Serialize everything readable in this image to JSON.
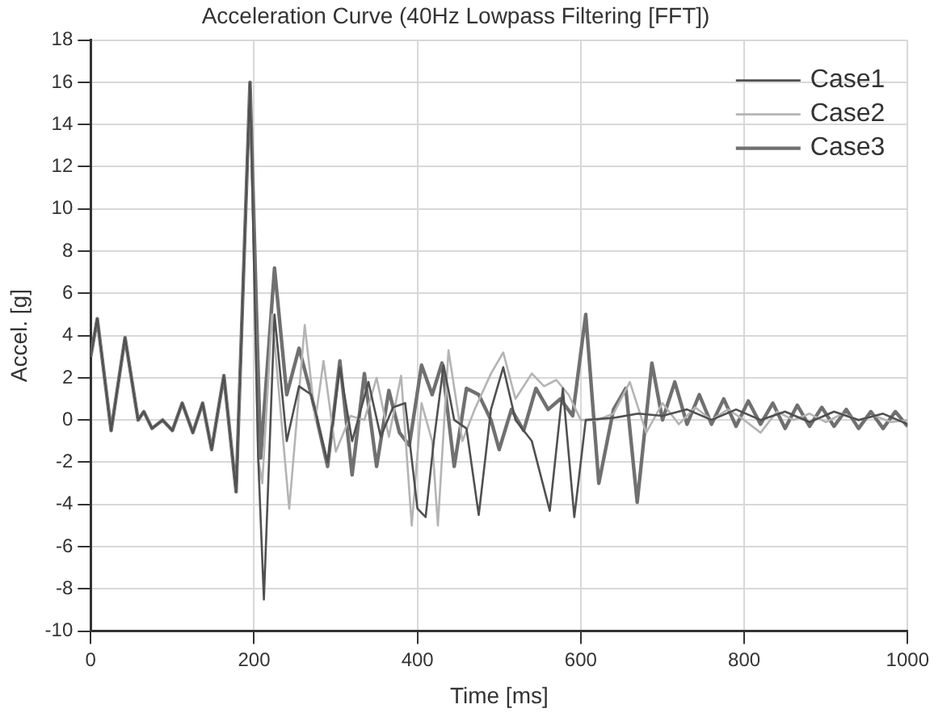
{
  "chart_data": {
    "type": "line",
    "title": "Acceleration Curve (40Hz Lowpass Filtering [FFT])",
    "xlabel": "Time [ms]",
    "ylabel": "Accel. [g]",
    "xlim": [
      0,
      1000
    ],
    "xticks": [
      0,
      200,
      400,
      600,
      800,
      1000
    ],
    "ylim": [
      -10,
      18
    ],
    "yticks": [
      -10,
      -8,
      -6,
      -4,
      -2,
      0,
      2,
      4,
      6,
      8,
      10,
      12,
      14,
      16,
      18
    ],
    "grid": true,
    "legend": "top right",
    "marker": "none",
    "line_style": "solid",
    "series": [
      {
        "name": "Case1",
        "color": "#505050",
        "x": [
          0,
          8,
          25,
          42,
          58,
          65,
          75,
          88,
          100,
          112,
          125,
          137,
          148,
          163,
          178,
          195,
          205,
          212,
          225,
          240,
          255,
          270,
          290,
          305,
          320,
          340,
          355,
          370,
          385,
          400,
          410,
          420,
          432,
          445,
          460,
          475,
          490,
          505,
          520,
          540,
          562,
          578,
          592,
          606,
          640,
          670,
          700,
          730,
          760,
          790,
          820,
          850,
          880,
          910,
          940,
          970,
          1000
        ],
        "values": [
          3,
          4.8,
          -0.5,
          3.9,
          0,
          0.4,
          -0.4,
          0,
          -0.5,
          0.8,
          -0.6,
          0.8,
          -1.4,
          2.1,
          -3.4,
          16,
          -1.8,
          -8.5,
          5,
          -1,
          1.6,
          1.2,
          -2,
          2.5,
          -1,
          1.8,
          -0.8,
          0.6,
          0.8,
          -4.2,
          -4.6,
          -1,
          2.6,
          0,
          -0.4,
          -4.5,
          0.5,
          2.5,
          0,
          -1,
          -4.3,
          1.5,
          -4.6,
          0,
          0.1,
          0.3,
          0.2,
          0.5,
          0,
          0.5,
          0,
          0.4,
          -0.1,
          0.4,
          0,
          0.3,
          -0.2
        ]
      },
      {
        "name": "Case2",
        "color": "#b4b4b4",
        "x": [
          0,
          8,
          25,
          42,
          58,
          65,
          75,
          88,
          100,
          112,
          125,
          137,
          148,
          163,
          178,
          195,
          205,
          210,
          222,
          243,
          262,
          275,
          285,
          300,
          318,
          335,
          350,
          365,
          380,
          393,
          405,
          418,
          425,
          438,
          455,
          470,
          490,
          505,
          520,
          540,
          555,
          570,
          585,
          600,
          620,
          640,
          660,
          680,
          700,
          720,
          740,
          760,
          780,
          800,
          820,
          840,
          860,
          880,
          900,
          920,
          940,
          960,
          980,
          1000
        ],
        "values": [
          3,
          4.8,
          -0.5,
          3.9,
          0,
          0.4,
          -0.4,
          0,
          -0.5,
          0.8,
          -0.6,
          0.8,
          -1.4,
          2.1,
          -3.4,
          16,
          -1.8,
          -3,
          5,
          -4.2,
          4.5,
          0,
          2.8,
          -1.5,
          0.2,
          0,
          2,
          -0.8,
          2.1,
          -5,
          0.8,
          -1,
          -5,
          3.3,
          -1,
          0.5,
          2.2,
          3.2,
          1,
          2.2,
          1.6,
          1.9,
          1.2,
          0,
          0,
          0.3,
          1.8,
          -0.6,
          0.8,
          -0.2,
          0.6,
          0,
          0.5,
          0,
          -0.6,
          0.4,
          0,
          0.3,
          -0.1,
          0.3,
          0,
          0.2,
          -0.1,
          0
        ]
      },
      {
        "name": "Case3",
        "color": "#707070",
        "x": [
          0,
          8,
          25,
          42,
          58,
          65,
          75,
          88,
          100,
          112,
          125,
          137,
          148,
          163,
          178,
          195,
          208,
          225,
          240,
          255,
          270,
          290,
          305,
          320,
          335,
          350,
          365,
          378,
          390,
          405,
          418,
          430,
          445,
          460,
          475,
          490,
          500,
          515,
          530,
          545,
          560,
          575,
          590,
          606,
          622,
          640,
          655,
          669,
          687,
          700,
          715,
          730,
          745,
          760,
          775,
          790,
          805,
          820,
          835,
          850,
          865,
          880,
          895,
          910,
          925,
          940,
          955,
          970,
          985,
          1000
        ],
        "values": [
          3,
          4.8,
          -0.5,
          3.9,
          0,
          0.4,
          -0.4,
          0,
          -0.5,
          0.8,
          -0.6,
          0.8,
          -1.4,
          2.1,
          -3.4,
          16,
          -1.8,
          7.2,
          1.2,
          3.4,
          1.2,
          -2.2,
          2.8,
          -2.6,
          2.2,
          -2.2,
          1.4,
          -0.6,
          -1.2,
          2.6,
          1.2,
          2.7,
          -2.2,
          1.5,
          1.2,
          0,
          -1.4,
          0.5,
          -0.5,
          1.5,
          0.5,
          1,
          0.2,
          5,
          -3,
          0.5,
          1.5,
          -3.9,
          2.7,
          0,
          1.8,
          -0.2,
          1.2,
          -0.2,
          1,
          -0.3,
          0.9,
          -0.2,
          0.8,
          -0.4,
          0.7,
          -0.3,
          0.6,
          -0.3,
          0.5,
          -0.4,
          0.4,
          -0.4,
          0.4,
          -0.3
        ]
      }
    ]
  }
}
